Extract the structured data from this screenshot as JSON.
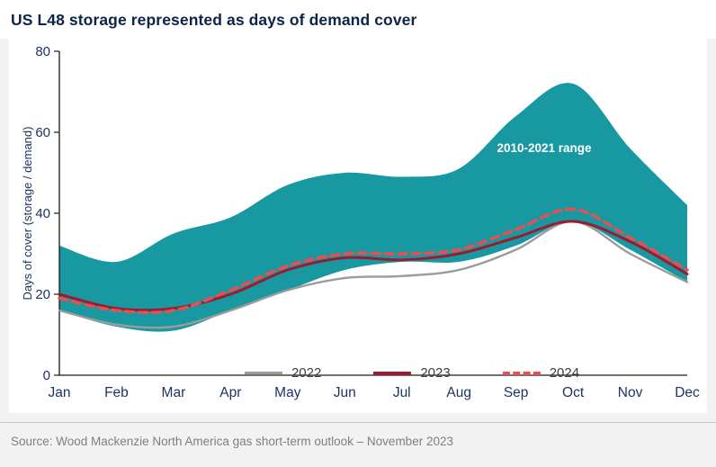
{
  "title": "US L48 storage represented as days of demand cover",
  "source": "Source: Wood Mackenzie North America gas short-term outlook – November 2023",
  "colors": {
    "title": "#0B2447",
    "axis_labels": "#1D3461",
    "source_text": "#7E7E86",
    "band_teal": "#1899A1",
    "line_2022": "#9B9B9B",
    "line_2023": "#9C1B30",
    "line_2024": "#EA4E51"
  },
  "chart_data": {
    "type": "area",
    "title": "US L48 storage represented as days of demand cover",
    "xlabel": "",
    "ylabel": "Days of cover (storage / demand)",
    "ylim": [
      0,
      80
    ],
    "yticks": [
      0,
      20,
      40,
      60,
      80
    ],
    "categories": [
      "Jan",
      "Feb",
      "Mar",
      "Apr",
      "May",
      "Jun",
      "Jul",
      "Aug",
      "Sep",
      "Oct",
      "Nov",
      "Dec"
    ],
    "band": {
      "name": "2010-2021 range",
      "color": "#1899A1",
      "upper": [
        32,
        28,
        35,
        39,
        47,
        50,
        49,
        51,
        64,
        72,
        56,
        42
      ],
      "lower": [
        16,
        12,
        11,
        16,
        21,
        26,
        28,
        28,
        32,
        38,
        31,
        23
      ]
    },
    "series": [
      {
        "name": "2022",
        "color": "#9B9B9B",
        "width": 2.4,
        "dash": null,
        "values": [
          16,
          12.5,
          12,
          16,
          21,
          24,
          24.5,
          26,
          31,
          38,
          30,
          23
        ]
      },
      {
        "name": "2023",
        "color": "#9C1B30",
        "width": 3,
        "dash": null,
        "values": [
          20,
          16.5,
          16.5,
          20,
          26,
          29,
          28.5,
          30,
          34,
          38,
          33,
          25
        ]
      },
      {
        "name": "2024",
        "color": "#EA4E51",
        "width": 3.4,
        "dash": "9 6",
        "values": [
          19,
          16,
          16,
          21,
          27,
          30,
          30,
          31,
          36,
          41,
          34,
          26
        ]
      }
    ],
    "legend_position": "bottom-inside",
    "grid": false
  }
}
